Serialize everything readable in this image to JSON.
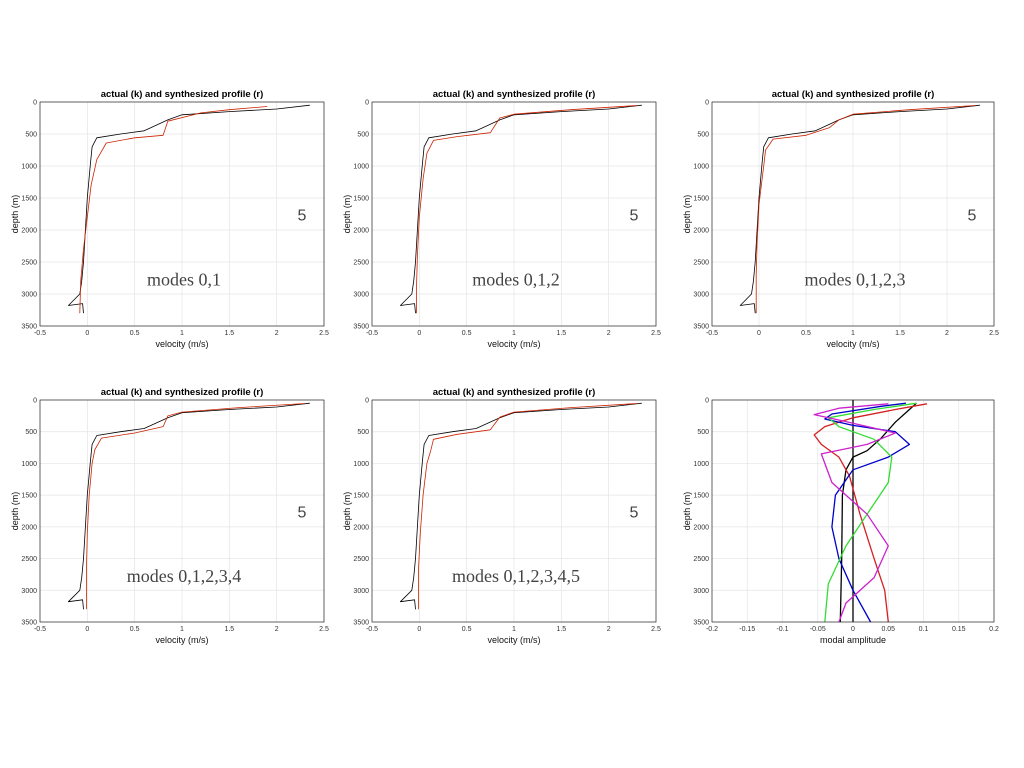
{
  "chart_data": [
    {
      "type": "line",
      "title": "actual (k) and synthesized profile (r)",
      "xlabel": "velocity (m/s)",
      "ylabel": "depth (m)",
      "xlim": [
        -0.5,
        2.5
      ],
      "ylim": [
        0,
        3500
      ],
      "y_reversed": true,
      "xticks": [
        "-0.5",
        "0",
        "0.5",
        "1",
        "1.5",
        "2",
        "2.5"
      ],
      "yticks": [
        "0",
        "500",
        "1000",
        "1500",
        "2000",
        "2500",
        "3000",
        "3500"
      ],
      "grid": true,
      "annotation": "modes 0,1",
      "number_label": "5",
      "series": [
        {
          "color": "#000000",
          "points": [
            [
              2.35,
              50
            ],
            [
              2.0,
              110
            ],
            [
              1.5,
              150
            ],
            [
              1.0,
              200
            ],
            [
              0.85,
              280
            ],
            [
              0.6,
              450
            ],
            [
              0.35,
              500
            ],
            [
              0.1,
              560
            ],
            [
              0.05,
              700
            ],
            [
              0.03,
              1000
            ],
            [
              0.0,
              1500
            ],
            [
              -0.02,
              2000
            ],
            [
              -0.04,
              2500
            ],
            [
              -0.06,
              2800
            ],
            [
              -0.08,
              3000
            ],
            [
              -0.2,
              3180
            ],
            [
              -0.05,
              3150
            ],
            [
              -0.04,
              3300
            ]
          ]
        },
        {
          "color": "#cc2200",
          "points": [
            [
              1.9,
              70
            ],
            [
              1.5,
              120
            ],
            [
              1.2,
              170
            ],
            [
              0.85,
              300
            ],
            [
              0.8,
              520
            ],
            [
              0.5,
              560
            ],
            [
              0.2,
              640
            ],
            [
              0.1,
              900
            ],
            [
              0.04,
              1300
            ],
            [
              0.0,
              1800
            ],
            [
              -0.04,
              2300
            ],
            [
              -0.07,
              2800
            ],
            [
              -0.08,
              3300
            ]
          ]
        }
      ]
    },
    {
      "type": "line",
      "title": "actual (k) and synthesized profile (r)",
      "xlabel": "velocity (m/s)",
      "ylabel": "depth (m)",
      "xlim": [
        -0.5,
        2.5
      ],
      "ylim": [
        0,
        3500
      ],
      "y_reversed": true,
      "xticks": [
        "-0.5",
        "0",
        "0.5",
        "1",
        "1.5",
        "2",
        "2.5"
      ],
      "yticks": [
        "0",
        "500",
        "1000",
        "1500",
        "2000",
        "2500",
        "3000",
        "3500"
      ],
      "grid": true,
      "annotation": "modes 0,1,2",
      "number_label": "5",
      "series": [
        {
          "color": "#000000",
          "points": [
            [
              2.35,
              50
            ],
            [
              2.0,
              110
            ],
            [
              1.5,
              150
            ],
            [
              1.0,
              200
            ],
            [
              0.85,
              280
            ],
            [
              0.6,
              450
            ],
            [
              0.35,
              500
            ],
            [
              0.1,
              560
            ],
            [
              0.05,
              700
            ],
            [
              0.03,
              1000
            ],
            [
              0.0,
              1500
            ],
            [
              -0.02,
              2000
            ],
            [
              -0.04,
              2500
            ],
            [
              -0.06,
              2800
            ],
            [
              -0.08,
              3000
            ],
            [
              -0.2,
              3180
            ],
            [
              -0.05,
              3150
            ],
            [
              -0.04,
              3300
            ]
          ]
        },
        {
          "color": "#cc2200",
          "points": [
            [
              2.3,
              55
            ],
            [
              1.6,
              120
            ],
            [
              1.0,
              190
            ],
            [
              0.85,
              250
            ],
            [
              0.75,
              480
            ],
            [
              0.4,
              540
            ],
            [
              0.15,
              600
            ],
            [
              0.08,
              800
            ],
            [
              0.04,
              1200
            ],
            [
              0.0,
              1800
            ],
            [
              -0.02,
              2400
            ],
            [
              -0.03,
              2900
            ],
            [
              -0.03,
              3300
            ]
          ]
        }
      ]
    },
    {
      "type": "line",
      "title": "actual (k) and synthesized profile (r)",
      "xlabel": "velocity (m/s)",
      "ylabel": "depth (m)",
      "xlim": [
        -0.5,
        2.5
      ],
      "ylim": [
        0,
        3500
      ],
      "y_reversed": true,
      "xticks": [
        "-0.5",
        "0",
        "0.5",
        "1",
        "1.5",
        "2",
        "2.5"
      ],
      "yticks": [
        "0",
        "500",
        "1000",
        "1500",
        "2000",
        "2500",
        "3000",
        "3500"
      ],
      "grid": true,
      "annotation": "modes 0,1,2,3",
      "number_label": "5",
      "series": [
        {
          "color": "#000000",
          "points": [
            [
              2.35,
              50
            ],
            [
              2.0,
              110
            ],
            [
              1.5,
              150
            ],
            [
              1.0,
              200
            ],
            [
              0.85,
              280
            ],
            [
              0.6,
              450
            ],
            [
              0.35,
              500
            ],
            [
              0.1,
              560
            ],
            [
              0.05,
              700
            ],
            [
              0.03,
              1000
            ],
            [
              0.0,
              1500
            ],
            [
              -0.02,
              2000
            ],
            [
              -0.04,
              2500
            ],
            [
              -0.06,
              2800
            ],
            [
              -0.08,
              3000
            ],
            [
              -0.2,
              3180
            ],
            [
              -0.05,
              3150
            ],
            [
              -0.04,
              3300
            ]
          ]
        },
        {
          "color": "#cc2200",
          "points": [
            [
              2.3,
              55
            ],
            [
              1.6,
              120
            ],
            [
              1.0,
              190
            ],
            [
              0.85,
              280
            ],
            [
              0.75,
              400
            ],
            [
              0.5,
              520
            ],
            [
              0.15,
              580
            ],
            [
              0.07,
              750
            ],
            [
              0.05,
              1000
            ],
            [
              0.0,
              1600
            ],
            [
              -0.02,
              2200
            ],
            [
              -0.03,
              2700
            ],
            [
              -0.03,
              3300
            ]
          ]
        }
      ]
    },
    {
      "type": "line",
      "title": "actual (k) and synthesized profile (r)",
      "xlabel": "velocity (m/s)",
      "ylabel": "depth (m)",
      "xlim": [
        -0.5,
        2.5
      ],
      "ylim": [
        0,
        3500
      ],
      "y_reversed": true,
      "xticks": [
        "-0.5",
        "0",
        "0.5",
        "1",
        "1.5",
        "2",
        "2.5"
      ],
      "yticks": [
        "0",
        "500",
        "1000",
        "1500",
        "2000",
        "2500",
        "3000",
        "3500"
      ],
      "grid": true,
      "annotation": "modes 0,1,2,3,4",
      "number_label": "5",
      "series": [
        {
          "color": "#000000",
          "points": [
            [
              2.35,
              50
            ],
            [
              2.0,
              110
            ],
            [
              1.5,
              150
            ],
            [
              1.0,
              200
            ],
            [
              0.85,
              280
            ],
            [
              0.6,
              450
            ],
            [
              0.35,
              500
            ],
            [
              0.1,
              560
            ],
            [
              0.05,
              700
            ],
            [
              0.03,
              1000
            ],
            [
              0.0,
              1500
            ],
            [
              -0.02,
              2000
            ],
            [
              -0.04,
              2500
            ],
            [
              -0.06,
              2800
            ],
            [
              -0.08,
              3000
            ],
            [
              -0.2,
              3180
            ],
            [
              -0.05,
              3150
            ],
            [
              -0.04,
              3300
            ]
          ]
        },
        {
          "color": "#cc2200",
          "points": [
            [
              2.3,
              55
            ],
            [
              1.6,
              120
            ],
            [
              1.0,
              190
            ],
            [
              0.85,
              250
            ],
            [
              0.8,
              420
            ],
            [
              0.5,
              520
            ],
            [
              0.15,
              600
            ],
            [
              0.08,
              780
            ],
            [
              0.05,
              1000
            ],
            [
              0.02,
              1500
            ],
            [
              0.0,
              2100
            ],
            [
              -0.01,
              2700
            ],
            [
              -0.01,
              3300
            ]
          ]
        }
      ]
    },
    {
      "type": "line",
      "title": "actual (k) and synthesized profile (r)",
      "xlabel": "velocity (m/s)",
      "ylabel": "depth (m)",
      "xlim": [
        -0.5,
        2.5
      ],
      "ylim": [
        0,
        3500
      ],
      "y_reversed": true,
      "xticks": [
        "-0.5",
        "0",
        "0.5",
        "1",
        "1.5",
        "2",
        "2.5"
      ],
      "yticks": [
        "0",
        "500",
        "1000",
        "1500",
        "2000",
        "2500",
        "3000",
        "3500"
      ],
      "grid": true,
      "annotation": "modes 0,1,2,3,4,5",
      "number_label": "5",
      "series": [
        {
          "color": "#000000",
          "points": [
            [
              2.35,
              50
            ],
            [
              2.0,
              110
            ],
            [
              1.5,
              150
            ],
            [
              1.0,
              200
            ],
            [
              0.85,
              280
            ],
            [
              0.6,
              450
            ],
            [
              0.35,
              500
            ],
            [
              0.1,
              560
            ],
            [
              0.05,
              700
            ],
            [
              0.03,
              1000
            ],
            [
              0.0,
              1500
            ],
            [
              -0.02,
              2000
            ],
            [
              -0.04,
              2500
            ],
            [
              -0.06,
              2800
            ],
            [
              -0.08,
              3000
            ],
            [
              -0.2,
              3180
            ],
            [
              -0.05,
              3150
            ],
            [
              -0.04,
              3300
            ]
          ]
        },
        {
          "color": "#cc2200",
          "points": [
            [
              2.3,
              55
            ],
            [
              1.6,
              120
            ],
            [
              1.0,
              190
            ],
            [
              0.85,
              270
            ],
            [
              0.75,
              470
            ],
            [
              0.4,
              540
            ],
            [
              0.15,
              620
            ],
            [
              0.12,
              800
            ],
            [
              0.08,
              1000
            ],
            [
              0.04,
              1500
            ],
            [
              0.01,
              2100
            ],
            [
              -0.01,
              2700
            ],
            [
              -0.01,
              3300
            ]
          ]
        }
      ]
    },
    {
      "type": "line",
      "title": "",
      "xlabel": "modal amplitude",
      "ylabel": "depth (m)",
      "xlim": [
        -0.2,
        0.2
      ],
      "ylim": [
        0,
        3500
      ],
      "y_reversed": true,
      "xticks": [
        "-0.2",
        "-0.15",
        "-0.1",
        "-0.05",
        "0",
        "0.05",
        "0.1",
        "0.15",
        "0.2"
      ],
      "yticks": [
        "0",
        "500",
        "1000",
        "1500",
        "2000",
        "2500",
        "3000",
        "3500"
      ],
      "grid": true,
      "annotation": "",
      "number_label": "",
      "series": [
        {
          "color": "#000000",
          "points": [
            [
              0.0,
              0
            ],
            [
              0.0,
              3500
            ]
          ]
        },
        {
          "color": "#000000",
          "points": [
            [
              0.09,
              50
            ],
            [
              0.08,
              150
            ],
            [
              0.06,
              350
            ],
            [
              0.04,
              600
            ],
            [
              0.02,
              800
            ],
            [
              0.0,
              900
            ],
            [
              -0.01,
              1100
            ],
            [
              -0.015,
              1500
            ],
            [
              -0.016,
              2500
            ],
            [
              -0.018,
              3500
            ]
          ]
        },
        {
          "color": "#d42020",
          "points": [
            [
              0.105,
              60
            ],
            [
              0.06,
              150
            ],
            [
              0.0,
              280
            ],
            [
              -0.04,
              420
            ],
            [
              -0.055,
              550
            ],
            [
              -0.045,
              700
            ],
            [
              -0.02,
              900
            ],
            [
              -0.005,
              1200
            ],
            [
              0.01,
              1800
            ],
            [
              0.03,
              2500
            ],
            [
              0.045,
              3000
            ],
            [
              0.05,
              3500
            ]
          ]
        },
        {
          "color": "#0000cc",
          "points": [
            [
              0.075,
              50
            ],
            [
              0.04,
              100
            ],
            [
              -0.03,
              220
            ],
            [
              -0.04,
              300
            ],
            [
              0.0,
              400
            ],
            [
              0.06,
              500
            ],
            [
              0.08,
              700
            ],
            [
              0.05,
              900
            ],
            [
              0.0,
              1100
            ],
            [
              -0.025,
              1500
            ],
            [
              -0.03,
              2000
            ],
            [
              -0.02,
              2500
            ],
            [
              0.0,
              3000
            ],
            [
              0.025,
              3500
            ]
          ]
        },
        {
          "color": "#33dd33",
          "points": [
            [
              0.09,
              50
            ],
            [
              0.03,
              150
            ],
            [
              -0.035,
              280
            ],
            [
              -0.02,
              420
            ],
            [
              0.03,
              620
            ],
            [
              0.055,
              900
            ],
            [
              0.05,
              1300
            ],
            [
              0.02,
              1800
            ],
            [
              -0.01,
              2300
            ],
            [
              -0.035,
              2900
            ],
            [
              -0.04,
              3500
            ]
          ]
        },
        {
          "color": "#cc22cc",
          "points": [
            [
              0.05,
              60
            ],
            [
              -0.02,
              130
            ],
            [
              -0.055,
              230
            ],
            [
              -0.01,
              340
            ],
            [
              0.06,
              520
            ],
            [
              0.02,
              700
            ],
            [
              -0.045,
              850
            ],
            [
              -0.03,
              1300
            ],
            [
              0.02,
              1800
            ],
            [
              0.05,
              2300
            ],
            [
              0.03,
              2800
            ],
            [
              -0.01,
              3200
            ],
            [
              -0.02,
              3500
            ]
          ]
        }
      ]
    }
  ]
}
